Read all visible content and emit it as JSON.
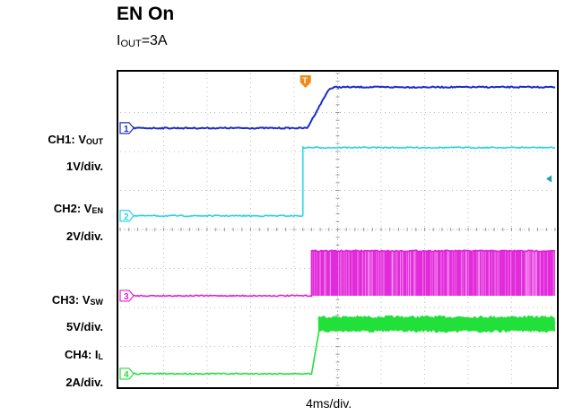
{
  "title": "EN On",
  "subtitle": {
    "main": "I",
    "sub": "OUT",
    "rest": "=3A"
  },
  "channels": [
    {
      "id": "ch1",
      "name": "CH1: V",
      "sub": "OUT",
      "scale": "1V/div.",
      "marker": "1",
      "color": "#1a2ec8"
    },
    {
      "id": "ch2",
      "name": "CH2: V",
      "sub": "EN",
      "scale": "2V/div.",
      "marker": "2",
      "color": "#2ad4e6"
    },
    {
      "id": "ch3",
      "name": "CH3: V",
      "sub": "SW",
      "scale": "5V/div.",
      "marker": "3",
      "color": "#e020d8"
    },
    {
      "id": "ch4",
      "name": "CH4: I",
      "sub": "L",
      "scale": "2A/div.",
      "marker": "4",
      "color": "#22e03a"
    }
  ],
  "trigger_marker": "T",
  "chart_data": {
    "type": "line",
    "xlabel": "4ms/div.",
    "x_unit": "div",
    "xlim": [
      0,
      10
    ],
    "ylim": [
      0,
      8
    ],
    "grid": true,
    "series": [
      {
        "name": "CH1: VOUT",
        "x": [
          0,
          4.3,
          4.8,
          4.95,
          10
        ],
        "y": [
          6.6,
          6.6,
          7.6,
          7.65,
          7.65
        ]
      },
      {
        "name": "CH2: VEN",
        "x": [
          0,
          4.2,
          4.2,
          10
        ],
        "y": [
          4.35,
          4.35,
          6.1,
          6.1
        ]
      },
      {
        "name": "CH3: VSW",
        "x": [
          0,
          4.4,
          4.4,
          10
        ],
        "y": [
          2.3,
          2.3,
          3.45,
          3.45
        ],
        "switching_band": [
          2.3,
          3.45
        ],
        "switching_start": 4.4
      },
      {
        "name": "CH4: IL",
        "x": [
          0,
          4.4,
          4.6,
          10
        ],
        "y": [
          0.3,
          0.3,
          1.6,
          1.6
        ],
        "ripple_band": [
          1.35,
          1.8
        ],
        "ripple_start": 4.55
      }
    ]
  }
}
